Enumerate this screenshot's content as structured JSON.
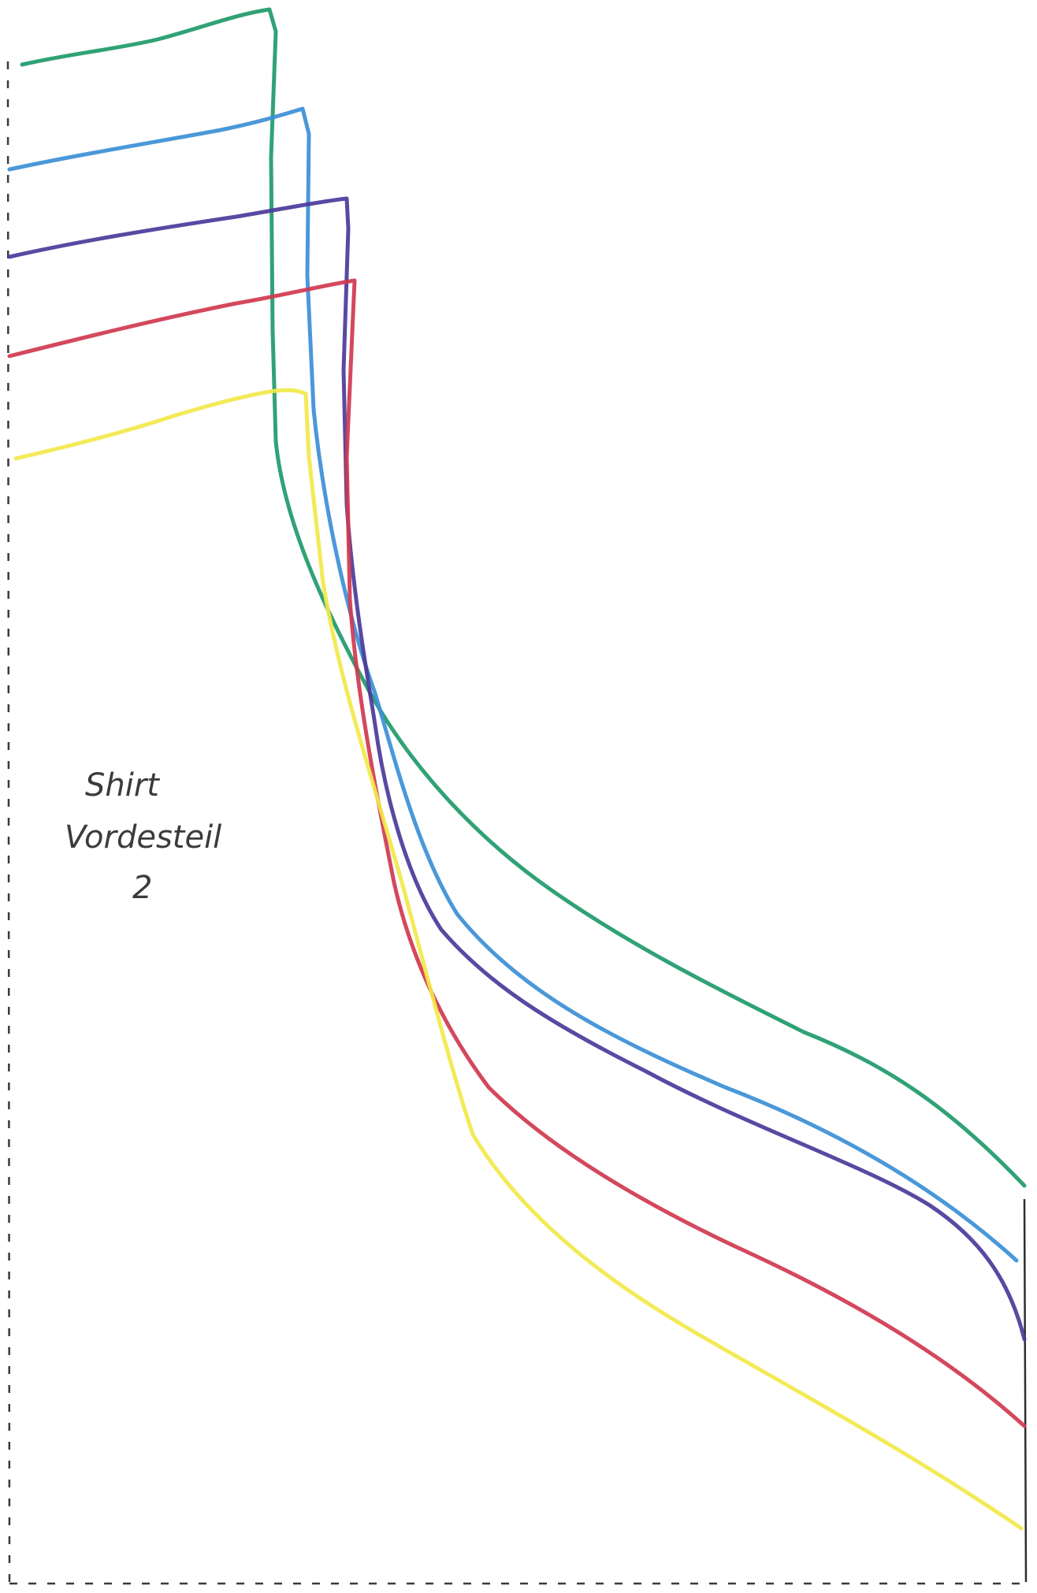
{
  "label": {
    "line1": "Shirt",
    "line2": "Vordesteil",
    "line3": "2"
  },
  "lines": [
    {
      "name": "green",
      "color": "#1e9a6a"
    },
    {
      "name": "blue",
      "color": "#3b8fd6"
    },
    {
      "name": "purple",
      "color": "#4b3a9a"
    },
    {
      "name": "red",
      "color": "#d0384f"
    },
    {
      "name": "yellow",
      "color": "#f2e84a"
    }
  ],
  "border_color": "#3a3a3a"
}
